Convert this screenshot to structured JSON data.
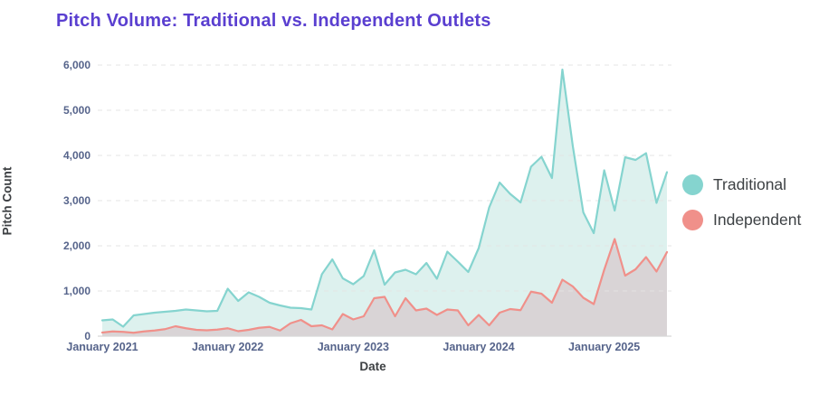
{
  "title": "Pitch Volume: Traditional vs. Independent Outlets",
  "colors": {
    "title": "#5a3fd0",
    "traditional_line": "#85d4cf",
    "traditional_fill": "#ddf1ee",
    "independent_line": "#f0908a",
    "independent_fill": "#d9d4d6",
    "gridline": "#e4e4e4",
    "axis_line": "#d8d8d8",
    "tick_text": "#56648b",
    "axis_title_text": "#3d4043",
    "legend_text": "#3d4144"
  },
  "chart_data": {
    "type": "area",
    "title": "Pitch Volume: Traditional vs. Independent Outlets",
    "xlabel": "Date",
    "ylabel": "Pitch Count",
    "x_start": "2021-01",
    "x_interval": "monthly",
    "x_tick_labels": [
      "January 2021",
      "January 2022",
      "January 2023",
      "January 2024",
      "January 2025"
    ],
    "x_tick_month_index": [
      0,
      12,
      24,
      36,
      48
    ],
    "y_ticks": [
      0,
      1000,
      2000,
      3000,
      4000,
      5000,
      6000
    ],
    "y_tick_labels": [
      "0",
      "1,000",
      "2,000",
      "3,000",
      "4,000",
      "5,000",
      "6,000"
    ],
    "ylim": [
      0,
      6000
    ],
    "grid": "horizontal-dashed",
    "legend_position": "right",
    "series": [
      {
        "name": "Traditional",
        "color": "#85d4cf",
        "fill": "#ddf1ee",
        "values": [
          350,
          370,
          210,
          460,
          490,
          520,
          540,
          560,
          590,
          570,
          550,
          560,
          1050,
          780,
          970,
          870,
          740,
          680,
          630,
          620,
          590,
          1370,
          1700,
          1280,
          1150,
          1330,
          1900,
          1140,
          1410,
          1470,
          1370,
          1620,
          1270,
          1870,
          1650,
          1420,
          1950,
          2850,
          3400,
          3150,
          2960,
          3750,
          3970,
          3500,
          5900,
          4200,
          2740,
          2280,
          3670,
          2780,
          3960,
          3900,
          4050,
          2950,
          3630
        ]
      },
      {
        "name": "Independent",
        "color": "#f0908a",
        "fill": "#d9d4d6",
        "values": [
          80,
          105,
          95,
          75,
          105,
          125,
          155,
          220,
          175,
          140,
          130,
          145,
          175,
          110,
          140,
          185,
          205,
          125,
          285,
          360,
          220,
          240,
          150,
          490,
          370,
          440,
          840,
          870,
          440,
          840,
          570,
          610,
          470,
          590,
          570,
          240,
          470,
          240,
          520,
          600,
          575,
          985,
          940,
          740,
          1250,
          1100,
          850,
          710,
          1470,
          2150,
          1340,
          1480,
          1750,
          1430,
          1860
        ]
      }
    ]
  },
  "layout_note": "monthly points Jan 2021 through Jul 2025"
}
